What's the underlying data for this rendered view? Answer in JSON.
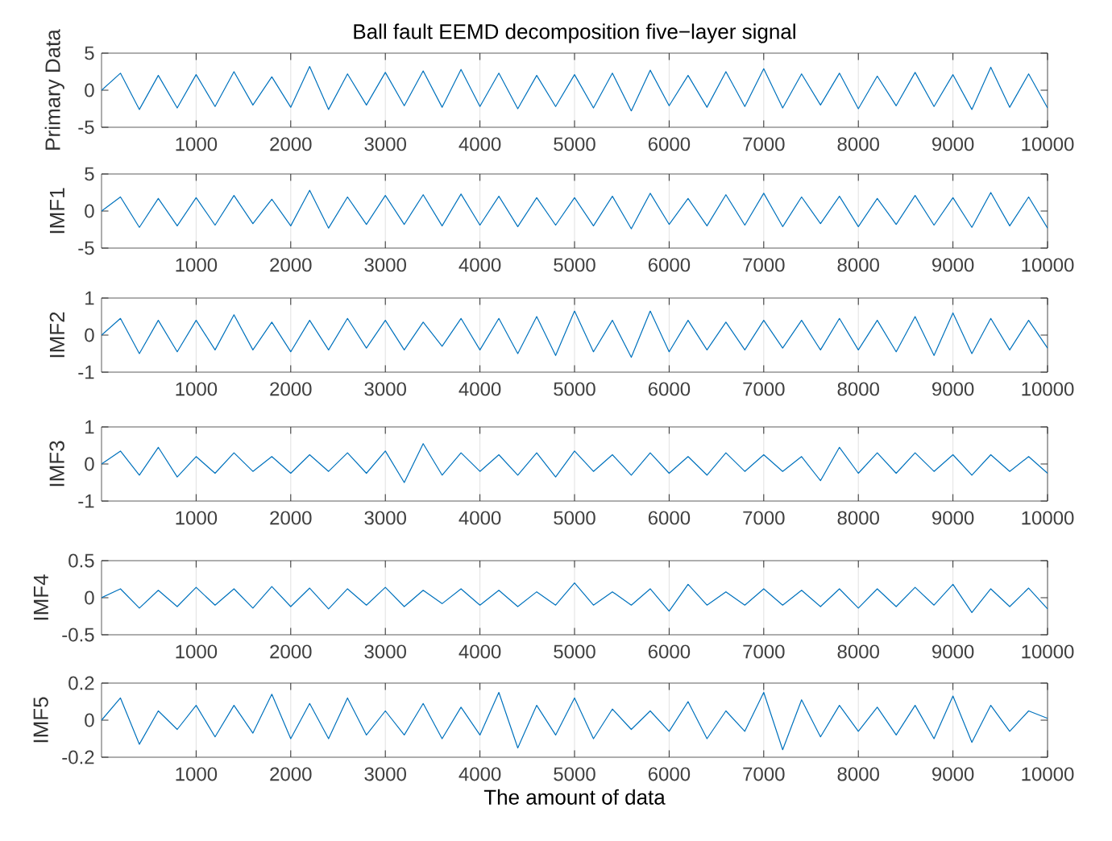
{
  "chart_data": [
    {
      "type": "line",
      "title": "Ball fault EEMD decomposition five−layer signal",
      "ylabel": "Primary Data",
      "grid": "x",
      "xlim": [
        0,
        10000
      ],
      "xticks": [
        1000,
        2000,
        3000,
        4000,
        5000,
        6000,
        7000,
        8000,
        9000,
        10000
      ],
      "ylim": [
        -5,
        5
      ],
      "yticks": [
        -5,
        0,
        5
      ],
      "x": [
        0,
        200,
        400,
        600,
        800,
        1000,
        1200,
        1400,
        1600,
        1800,
        2000,
        2200,
        2400,
        2600,
        2800,
        3000,
        3200,
        3400,
        3600,
        3800,
        4000,
        4200,
        4400,
        4600,
        4800,
        5000,
        5200,
        5400,
        5600,
        5800,
        6000,
        6200,
        6400,
        6600,
        6800,
        7000,
        7200,
        7400,
        7600,
        7800,
        8000,
        8200,
        8400,
        8600,
        8800,
        9000,
        9200,
        9400,
        9600,
        9800,
        10000
      ],
      "series": [
        {
          "color": "#0072bd",
          "values": [
            0,
            2.3,
            -2.6,
            2.0,
            -2.4,
            2.1,
            -2.2,
            2.5,
            -2.0,
            1.8,
            -2.3,
            3.2,
            -2.6,
            2.2,
            -2.0,
            2.4,
            -2.1,
            2.6,
            -2.3,
            2.8,
            -2.2,
            2.3,
            -2.5,
            2.0,
            -2.2,
            2.1,
            -2.4,
            2.3,
            -2.8,
            2.7,
            -2.1,
            2.0,
            -2.3,
            2.5,
            -2.2,
            2.9,
            -2.4,
            2.2,
            -2.0,
            2.3,
            -2.5,
            1.9,
            -2.1,
            2.4,
            -2.2,
            2.1,
            -2.6,
            3.1,
            -2.3,
            2.2,
            -2.4
          ]
        }
      ]
    },
    {
      "type": "line",
      "ylabel": "IMF1",
      "grid": "x",
      "xlim": [
        0,
        10000
      ],
      "xticks": [
        1000,
        2000,
        3000,
        4000,
        5000,
        6000,
        7000,
        8000,
        9000,
        10000
      ],
      "ylim": [
        -5,
        5
      ],
      "yticks": [
        -5,
        0,
        5
      ],
      "x": [
        0,
        200,
        400,
        600,
        800,
        1000,
        1200,
        1400,
        1600,
        1800,
        2000,
        2200,
        2400,
        2600,
        2800,
        3000,
        3200,
        3400,
        3600,
        3800,
        4000,
        4200,
        4400,
        4600,
        4800,
        5000,
        5200,
        5400,
        5600,
        5800,
        6000,
        6200,
        6400,
        6600,
        6800,
        7000,
        7200,
        7400,
        7600,
        7800,
        8000,
        8200,
        8400,
        8600,
        8800,
        9000,
        9200,
        9400,
        9600,
        9800,
        10000
      ],
      "series": [
        {
          "color": "#0072bd",
          "values": [
            0,
            1.9,
            -2.2,
            1.7,
            -2.0,
            1.8,
            -1.9,
            2.1,
            -1.7,
            1.6,
            -2.0,
            2.8,
            -2.3,
            1.9,
            -1.8,
            2.1,
            -1.8,
            2.2,
            -2.0,
            2.3,
            -1.9,
            2.0,
            -2.1,
            1.8,
            -1.9,
            1.8,
            -2.0,
            2.0,
            -2.4,
            2.4,
            -1.8,
            1.7,
            -2.0,
            2.2,
            -1.9,
            2.4,
            -2.1,
            1.9,
            -1.7,
            2.0,
            -2.1,
            1.7,
            -1.8,
            2.1,
            -1.9,
            1.8,
            -2.2,
            2.5,
            -2.0,
            1.9,
            -2.3
          ]
        }
      ]
    },
    {
      "type": "line",
      "ylabel": "IMF2",
      "grid": "x",
      "xlim": [
        0,
        10000
      ],
      "xticks": [
        1000,
        2000,
        3000,
        4000,
        5000,
        6000,
        7000,
        8000,
        9000,
        10000
      ],
      "ylim": [
        -1,
        1
      ],
      "yticks": [
        -1,
        0,
        1
      ],
      "x": [
        0,
        200,
        400,
        600,
        800,
        1000,
        1200,
        1400,
        1600,
        1800,
        2000,
        2200,
        2400,
        2600,
        2800,
        3000,
        3200,
        3400,
        3600,
        3800,
        4000,
        4200,
        4400,
        4600,
        4800,
        5000,
        5200,
        5400,
        5600,
        5800,
        6000,
        6200,
        6400,
        6600,
        6800,
        7000,
        7200,
        7400,
        7600,
        7800,
        8000,
        8200,
        8400,
        8600,
        8800,
        9000,
        9200,
        9400,
        9600,
        9800,
        10000
      ],
      "series": [
        {
          "color": "#0072bd",
          "values": [
            0,
            0.45,
            -0.5,
            0.4,
            -0.45,
            0.4,
            -0.4,
            0.55,
            -0.4,
            0.35,
            -0.45,
            0.4,
            -0.4,
            0.45,
            -0.35,
            0.4,
            -0.4,
            0.35,
            -0.3,
            0.45,
            -0.4,
            0.45,
            -0.5,
            0.5,
            -0.55,
            0.65,
            -0.45,
            0.4,
            -0.6,
            0.65,
            -0.45,
            0.4,
            -0.4,
            0.35,
            -0.4,
            0.4,
            -0.35,
            0.4,
            -0.4,
            0.45,
            -0.4,
            0.4,
            -0.45,
            0.5,
            -0.55,
            0.6,
            -0.5,
            0.45,
            -0.4,
            0.4,
            -0.35
          ]
        }
      ]
    },
    {
      "type": "line",
      "ylabel": "IMF3",
      "grid": "x",
      "xlim": [
        0,
        10000
      ],
      "xticks": [
        1000,
        2000,
        3000,
        4000,
        5000,
        6000,
        7000,
        8000,
        9000,
        10000
      ],
      "ylim": [
        -1,
        1
      ],
      "yticks": [
        -1,
        0,
        1
      ],
      "x": [
        0,
        200,
        400,
        600,
        800,
        1000,
        1200,
        1400,
        1600,
        1800,
        2000,
        2200,
        2400,
        2600,
        2800,
        3000,
        3200,
        3400,
        3600,
        3800,
        4000,
        4200,
        4400,
        4600,
        4800,
        5000,
        5200,
        5400,
        5600,
        5800,
        6000,
        6200,
        6400,
        6600,
        6800,
        7000,
        7200,
        7400,
        7600,
        7800,
        8000,
        8200,
        8400,
        8600,
        8800,
        9000,
        9200,
        9400,
        9600,
        9800,
        10000
      ],
      "series": [
        {
          "color": "#0072bd",
          "values": [
            0,
            0.35,
            -0.3,
            0.45,
            -0.35,
            0.2,
            -0.25,
            0.3,
            -0.2,
            0.2,
            -0.25,
            0.25,
            -0.2,
            0.3,
            -0.25,
            0.35,
            -0.5,
            0.55,
            -0.3,
            0.3,
            -0.2,
            0.25,
            -0.3,
            0.3,
            -0.35,
            0.35,
            -0.2,
            0.25,
            -0.3,
            0.3,
            -0.25,
            0.2,
            -0.3,
            0.3,
            -0.2,
            0.25,
            -0.2,
            0.2,
            -0.45,
            0.45,
            -0.25,
            0.3,
            -0.25,
            0.3,
            -0.2,
            0.25,
            -0.3,
            0.25,
            -0.2,
            0.2,
            -0.25
          ]
        }
      ]
    },
    {
      "type": "line",
      "ylabel": "IMF4",
      "grid": "x",
      "xlim": [
        0,
        10000
      ],
      "xticks": [
        1000,
        2000,
        3000,
        4000,
        5000,
        6000,
        7000,
        8000,
        9000,
        10000
      ],
      "ylim": [
        -0.5,
        0.5
      ],
      "yticks": [
        -0.5,
        0,
        0.5
      ],
      "x": [
        0,
        200,
        400,
        600,
        800,
        1000,
        1200,
        1400,
        1600,
        1800,
        2000,
        2200,
        2400,
        2600,
        2800,
        3000,
        3200,
        3400,
        3600,
        3800,
        4000,
        4200,
        4400,
        4600,
        4800,
        5000,
        5200,
        5400,
        5600,
        5800,
        6000,
        6200,
        6400,
        6600,
        6800,
        7000,
        7200,
        7400,
        7600,
        7800,
        8000,
        8200,
        8400,
        8600,
        8800,
        9000,
        9200,
        9400,
        9600,
        9800,
        10000
      ],
      "series": [
        {
          "color": "#0072bd",
          "values": [
            0,
            0.12,
            -0.14,
            0.1,
            -0.12,
            0.14,
            -0.1,
            0.12,
            -0.14,
            0.15,
            -0.12,
            0.13,
            -0.15,
            0.12,
            -0.1,
            0.14,
            -0.12,
            0.1,
            -0.08,
            0.12,
            -0.1,
            0.1,
            -0.12,
            0.08,
            -0.1,
            0.2,
            -0.1,
            0.08,
            -0.1,
            0.12,
            -0.18,
            0.18,
            -0.1,
            0.08,
            -0.1,
            0.12,
            -0.1,
            0.1,
            -0.12,
            0.12,
            -0.14,
            0.12,
            -0.12,
            0.14,
            -0.1,
            0.18,
            -0.2,
            0.12,
            -0.12,
            0.13,
            -0.15
          ]
        }
      ]
    },
    {
      "type": "line",
      "ylabel": "IMF5",
      "xlabel": "The amount of data",
      "grid": "x",
      "xlim": [
        0,
        10000
      ],
      "xticks": [
        1000,
        2000,
        3000,
        4000,
        5000,
        6000,
        7000,
        8000,
        9000,
        10000
      ],
      "ylim": [
        -0.2,
        0.2
      ],
      "yticks": [
        -0.2,
        0,
        0.2
      ],
      "x": [
        0,
        200,
        400,
        600,
        800,
        1000,
        1200,
        1400,
        1600,
        1800,
        2000,
        2200,
        2400,
        2600,
        2800,
        3000,
        3200,
        3400,
        3600,
        3800,
        4000,
        4200,
        4400,
        4600,
        4800,
        5000,
        5200,
        5400,
        5600,
        5800,
        6000,
        6200,
        6400,
        6600,
        6800,
        7000,
        7200,
        7400,
        7600,
        7800,
        8000,
        8200,
        8400,
        8600,
        8800,
        9000,
        9200,
        9400,
        9600,
        9800,
        10000
      ],
      "series": [
        {
          "color": "#0072bd",
          "values": [
            0,
            0.12,
            -0.13,
            0.05,
            -0.05,
            0.08,
            -0.09,
            0.08,
            -0.07,
            0.14,
            -0.1,
            0.09,
            -0.1,
            0.12,
            -0.08,
            0.05,
            -0.08,
            0.09,
            -0.1,
            0.07,
            -0.08,
            0.15,
            -0.15,
            0.08,
            -0.08,
            0.12,
            -0.1,
            0.06,
            -0.05,
            0.05,
            -0.06,
            0.1,
            -0.1,
            0.05,
            -0.06,
            0.15,
            -0.16,
            0.11,
            -0.09,
            0.08,
            -0.06,
            0.07,
            -0.08,
            0.08,
            -0.1,
            0.13,
            -0.12,
            0.08,
            -0.06,
            0.05,
            0.01
          ]
        }
      ]
    }
  ]
}
